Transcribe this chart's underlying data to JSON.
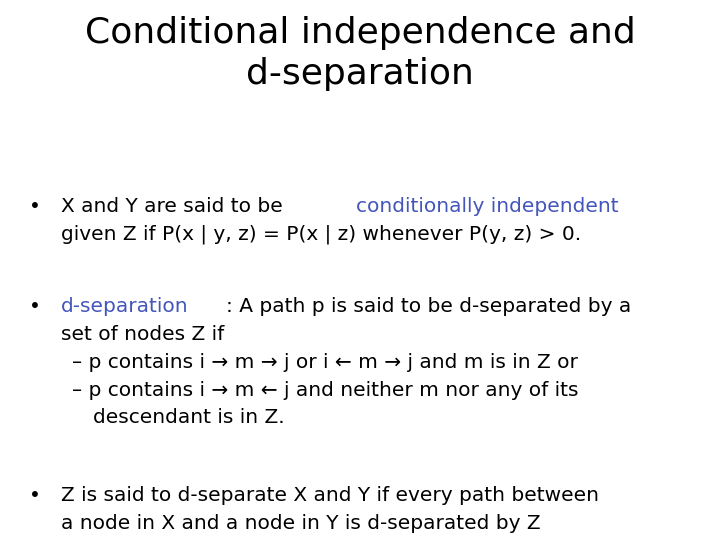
{
  "title_line1": "Conditional independence and",
  "title_line2": "d-separation",
  "title_fontsize": 26,
  "title_color": "#000000",
  "bg_color": "#ffffff",
  "bullet_color": "#000000",
  "highlight_color": "#4455bb",
  "body_fontsize": 14.5,
  "sub1": "– p contains i → m → j or i ← m → j and m is in Z or",
  "sub2_line1": "– p contains i → m ← j and neither m nor any of its",
  "sub2_line2": "descendant is in Z."
}
